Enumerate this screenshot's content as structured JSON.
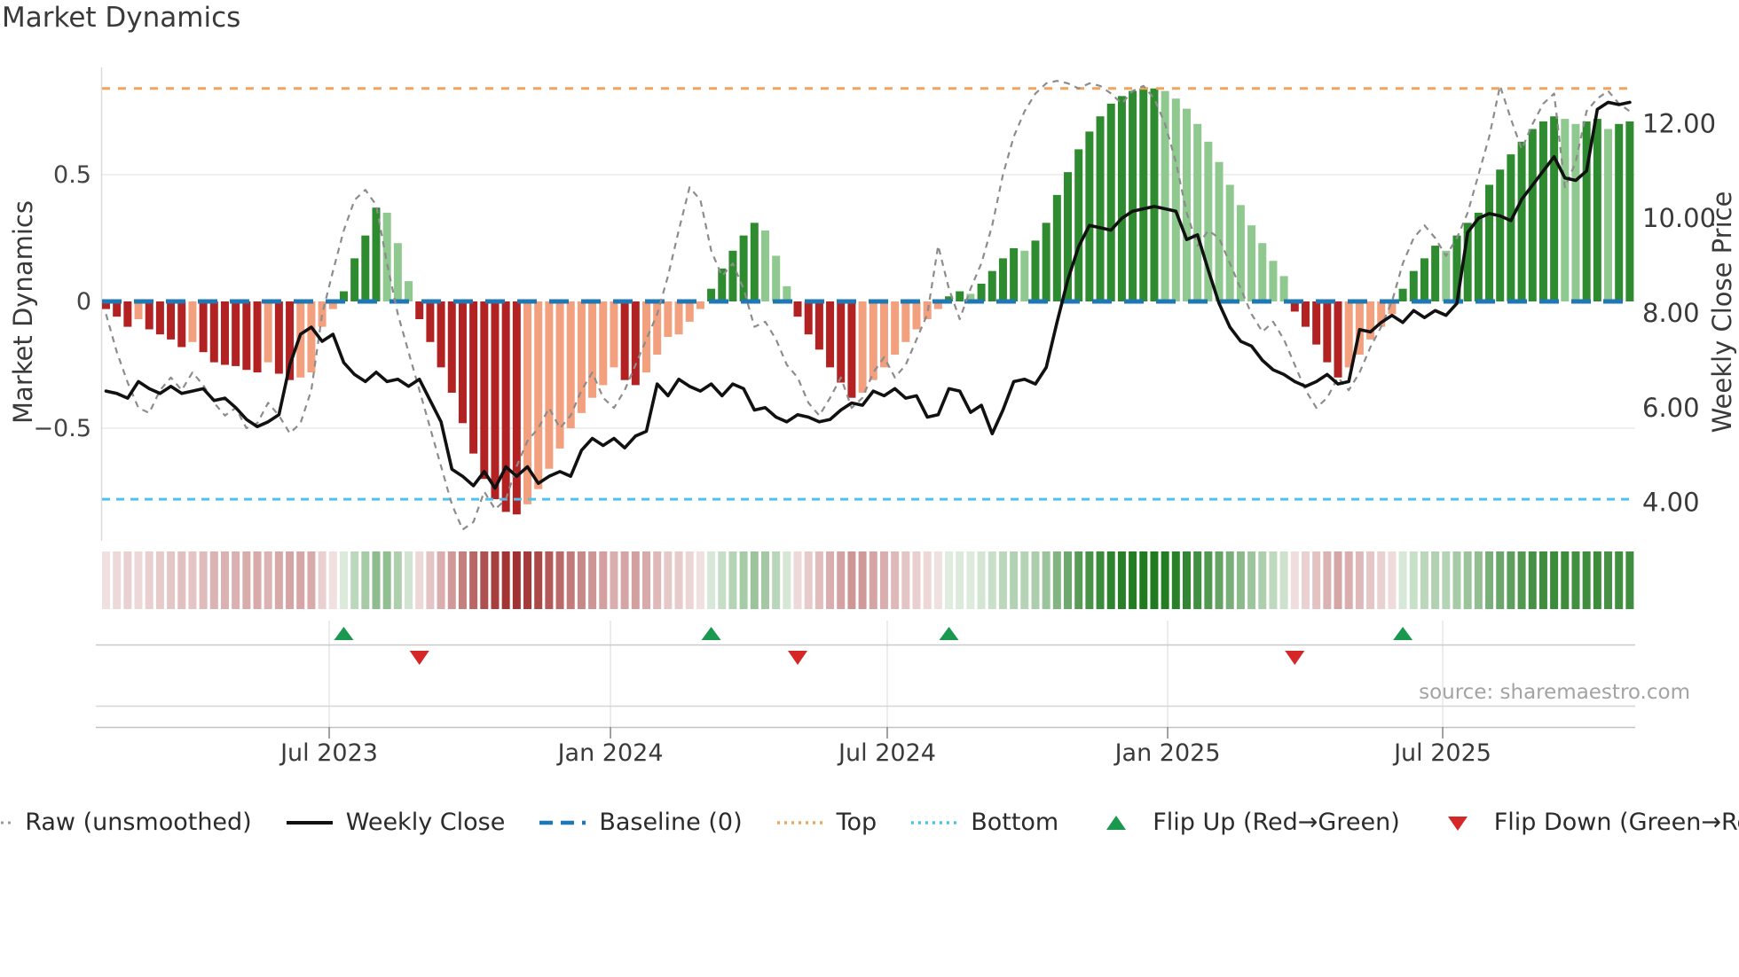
{
  "title": "Market Dynamics",
  "source_note": "source: sharemaestro.com",
  "axes": {
    "left_title": "Market Dynamics",
    "right_title": "Weekly Close Price",
    "left_ticks": [
      {
        "label": "0.5",
        "value": 0.5
      },
      {
        "label": "0",
        "value": 0
      },
      {
        "label": "−0.5",
        "value": -0.5
      }
    ],
    "right_ticks": [
      {
        "label": "12.00",
        "value": 12
      },
      {
        "label": "10.00",
        "value": 10
      },
      {
        "label": "8.00",
        "value": 8
      },
      {
        "label": "6.00",
        "value": 6
      },
      {
        "label": "4.00",
        "value": 4
      }
    ],
    "x_ticks": [
      {
        "label": "Jul 2023",
        "week": 20.65
      },
      {
        "label": "Jan 2024",
        "week": 46.68
      },
      {
        "label": "Jul 2024",
        "week": 72.29
      },
      {
        "label": "Jan 2025",
        "week": 98.24
      },
      {
        "label": "Jul 2025",
        "week": 123.69
      }
    ]
  },
  "chart_data": {
    "type": "composite",
    "title": "Market Dynamics",
    "x_unit": "week",
    "n_weeks": 142,
    "left_ylim": [
      -0.95,
      0.95
    ],
    "right_ylim": [
      3.5,
      12.8
    ],
    "baseline": 0,
    "top_line": 0.84,
    "bottom_line": -0.78,
    "series": [
      {
        "name": "Market Dynamics (bars)",
        "type": "bar",
        "axis": "left",
        "note": "dark shade = momentum strengthening or sign flip, light shade = momentum fading",
        "values": [
          -0.03,
          -0.06,
          -0.1,
          -0.07,
          -0.11,
          -0.13,
          -0.15,
          -0.18,
          -0.16,
          -0.2,
          -0.24,
          -0.25,
          -0.255,
          -0.27,
          -0.28,
          -0.24,
          -0.285,
          -0.31,
          -0.3,
          -0.28,
          -0.1,
          -0.03,
          0.04,
          0.17,
          0.26,
          0.37,
          0.35,
          0.23,
          0.08,
          -0.07,
          -0.16,
          -0.26,
          -0.36,
          -0.48,
          -0.6,
          -0.7,
          -0.78,
          -0.83,
          -0.84,
          -0.8,
          -0.74,
          -0.66,
          -0.58,
          -0.5,
          -0.44,
          -0.38,
          -0.33,
          -0.26,
          -0.31,
          -0.33,
          -0.28,
          -0.21,
          -0.14,
          -0.13,
          -0.08,
          -0.03,
          0.05,
          0.13,
          0.2,
          0.26,
          0.31,
          0.28,
          0.18,
          0.06,
          -0.06,
          -0.13,
          -0.19,
          -0.26,
          -0.32,
          -0.38,
          -0.36,
          -0.31,
          -0.26,
          -0.21,
          -0.16,
          -0.11,
          -0.07,
          -0.03,
          0.02,
          0.04,
          0.03,
          0.07,
          0.12,
          0.17,
          0.21,
          0.2,
          0.24,
          0.31,
          0.42,
          0.51,
          0.6,
          0.67,
          0.73,
          0.78,
          0.81,
          0.83,
          0.84,
          0.84,
          0.83,
          0.8,
          0.76,
          0.7,
          0.63,
          0.55,
          0.46,
          0.38,
          0.3,
          0.23,
          0.16,
          0.1,
          -0.04,
          -0.1,
          -0.17,
          -0.24,
          -0.3,
          -0.26,
          -0.21,
          -0.15,
          -0.1,
          -0.05,
          0.05,
          0.12,
          0.17,
          0.22,
          0.2,
          0.26,
          0.31,
          0.35,
          0.46,
          0.52,
          0.58,
          0.63,
          0.68,
          0.71,
          0.73,
          0.72,
          0.7,
          0.71,
          0.72,
          0.68,
          0.7,
          0.71
        ]
      },
      {
        "name": "Raw (unsmoothed)",
        "type": "line",
        "style": "dashed",
        "axis": "left",
        "values": [
          -0.05,
          -0.2,
          -0.32,
          -0.42,
          -0.44,
          -0.35,
          -0.3,
          -0.35,
          -0.28,
          -0.33,
          -0.4,
          -0.45,
          -0.42,
          -0.5,
          -0.48,
          -0.4,
          -0.45,
          -0.52,
          -0.48,
          -0.35,
          -0.05,
          0.12,
          0.28,
          0.4,
          0.44,
          0.38,
          0.15,
          -0.05,
          -0.2,
          -0.35,
          -0.5,
          -0.65,
          -0.8,
          -0.9,
          -0.87,
          -0.75,
          -0.82,
          -0.78,
          -0.65,
          -0.55,
          -0.5,
          -0.42,
          -0.5,
          -0.45,
          -0.35,
          -0.28,
          -0.38,
          -0.42,
          -0.35,
          -0.25,
          -0.15,
          -0.05,
          0.1,
          0.28,
          0.45,
          0.4,
          0.2,
          0.1,
          0.15,
          0.05,
          -0.1,
          -0.08,
          -0.15,
          -0.25,
          -0.3,
          -0.4,
          -0.45,
          -0.38,
          -0.3,
          -0.42,
          -0.38,
          -0.28,
          -0.22,
          -0.3,
          -0.25,
          -0.15,
          -0.05,
          0.22,
          0.05,
          -0.07,
          0.05,
          0.15,
          0.3,
          0.5,
          0.65,
          0.75,
          0.82,
          0.86,
          0.87,
          0.86,
          0.84,
          0.86,
          0.85,
          0.82,
          0.78,
          0.83,
          0.85,
          0.8,
          0.7,
          0.55,
          0.35,
          0.22,
          0.28,
          0.25,
          0.15,
          0.05,
          -0.05,
          -0.12,
          -0.08,
          -0.15,
          -0.25,
          -0.35,
          -0.42,
          -0.38,
          -0.3,
          -0.35,
          -0.28,
          -0.18,
          -0.1,
          0.0,
          0.15,
          0.25,
          0.3,
          0.25,
          0.18,
          0.25,
          0.35,
          0.5,
          0.65,
          0.85,
          0.72,
          0.6,
          0.7,
          0.78,
          0.82,
          0.45,
          0.55,
          0.75,
          0.8,
          0.83,
          0.78,
          0.75
        ]
      },
      {
        "name": "Weekly Close",
        "type": "line",
        "style": "solid",
        "axis": "right",
        "values": [
          6.35,
          6.3,
          6.2,
          6.55,
          6.4,
          6.3,
          6.45,
          6.3,
          6.35,
          6.4,
          6.15,
          6.2,
          6.0,
          5.75,
          5.6,
          5.7,
          5.85,
          6.9,
          7.55,
          7.7,
          7.4,
          7.55,
          6.95,
          6.7,
          6.55,
          6.75,
          6.55,
          6.6,
          6.45,
          6.6,
          6.15,
          5.7,
          4.7,
          4.55,
          4.35,
          4.65,
          4.3,
          4.75,
          4.55,
          4.75,
          4.4,
          4.55,
          4.65,
          4.55,
          5.1,
          5.35,
          5.2,
          5.35,
          5.15,
          5.4,
          5.5,
          6.5,
          6.25,
          6.6,
          6.45,
          6.35,
          6.5,
          6.25,
          6.5,
          6.4,
          5.95,
          6.0,
          5.8,
          5.7,
          5.85,
          5.8,
          5.7,
          5.75,
          5.95,
          6.1,
          6.05,
          6.35,
          6.25,
          6.4,
          6.2,
          6.25,
          5.8,
          5.85,
          6.4,
          6.35,
          5.9,
          6.05,
          5.45,
          5.95,
          6.55,
          6.6,
          6.5,
          6.85,
          7.8,
          8.7,
          9.4,
          9.85,
          9.8,
          9.75,
          10.0,
          10.15,
          10.2,
          10.25,
          10.2,
          10.15,
          9.55,
          9.65,
          8.9,
          8.2,
          7.7,
          7.4,
          7.3,
          7.0,
          6.8,
          6.7,
          6.55,
          6.45,
          6.55,
          6.7,
          6.5,
          6.55,
          7.65,
          7.6,
          7.8,
          7.95,
          7.8,
          8.05,
          7.9,
          8.05,
          7.95,
          8.2,
          9.7,
          10.0,
          10.1,
          10.05,
          9.95,
          10.4,
          10.7,
          11.0,
          11.3,
          10.85,
          10.8,
          11.0,
          12.3,
          12.45,
          12.4,
          12.45
        ]
      }
    ],
    "heatmap": {
      "note": "color strip mirrors bar values: red negative, green positive, intensity = |value|"
    },
    "flip_up_weeks": [
      22,
      56,
      78,
      120
    ],
    "flip_down_weeks": [
      29,
      64,
      110
    ]
  },
  "legend": [
    {
      "id": "raw",
      "label": "Raw (unsmoothed)",
      "swatch": "gray-dashed-line"
    },
    {
      "id": "close",
      "label": "Weekly Close",
      "swatch": "black-solid-line"
    },
    {
      "id": "baseline",
      "label": "Baseline (0)",
      "swatch": "blue-dashed-line"
    },
    {
      "id": "top",
      "label": "Top",
      "swatch": "orange-dotted-line"
    },
    {
      "id": "bottom",
      "label": "Bottom",
      "swatch": "cyan-dotted-line"
    },
    {
      "id": "flip-up",
      "label": "Flip Up (Red→Green)",
      "swatch": "green-up-triangle"
    },
    {
      "id": "flip-down",
      "label": "Flip Down (Green→Red)",
      "swatch": "red-down-triangle"
    }
  ],
  "colors": {
    "bar_pos_strong": "#2f8b2f",
    "bar_pos_weak": "#90c98f",
    "bar_neg_strong": "#b22222",
    "bar_neg_weak": "#f2a07e",
    "baseline": "#1f77b4",
    "top_line": "#f2a45f",
    "bottom_line": "#4fc3e9",
    "raw_line": "#8c8c8c",
    "close_line": "#111111",
    "flip_up": "#1a9850",
    "flip_down": "#d62728",
    "heat_pos": "#1e7a1e",
    "heat_neg": "#a03030",
    "grid": "#ececec",
    "spine": "#d9d9d9",
    "pane_line": "#c9c9c9",
    "tick_text": "#3a3a3a"
  }
}
